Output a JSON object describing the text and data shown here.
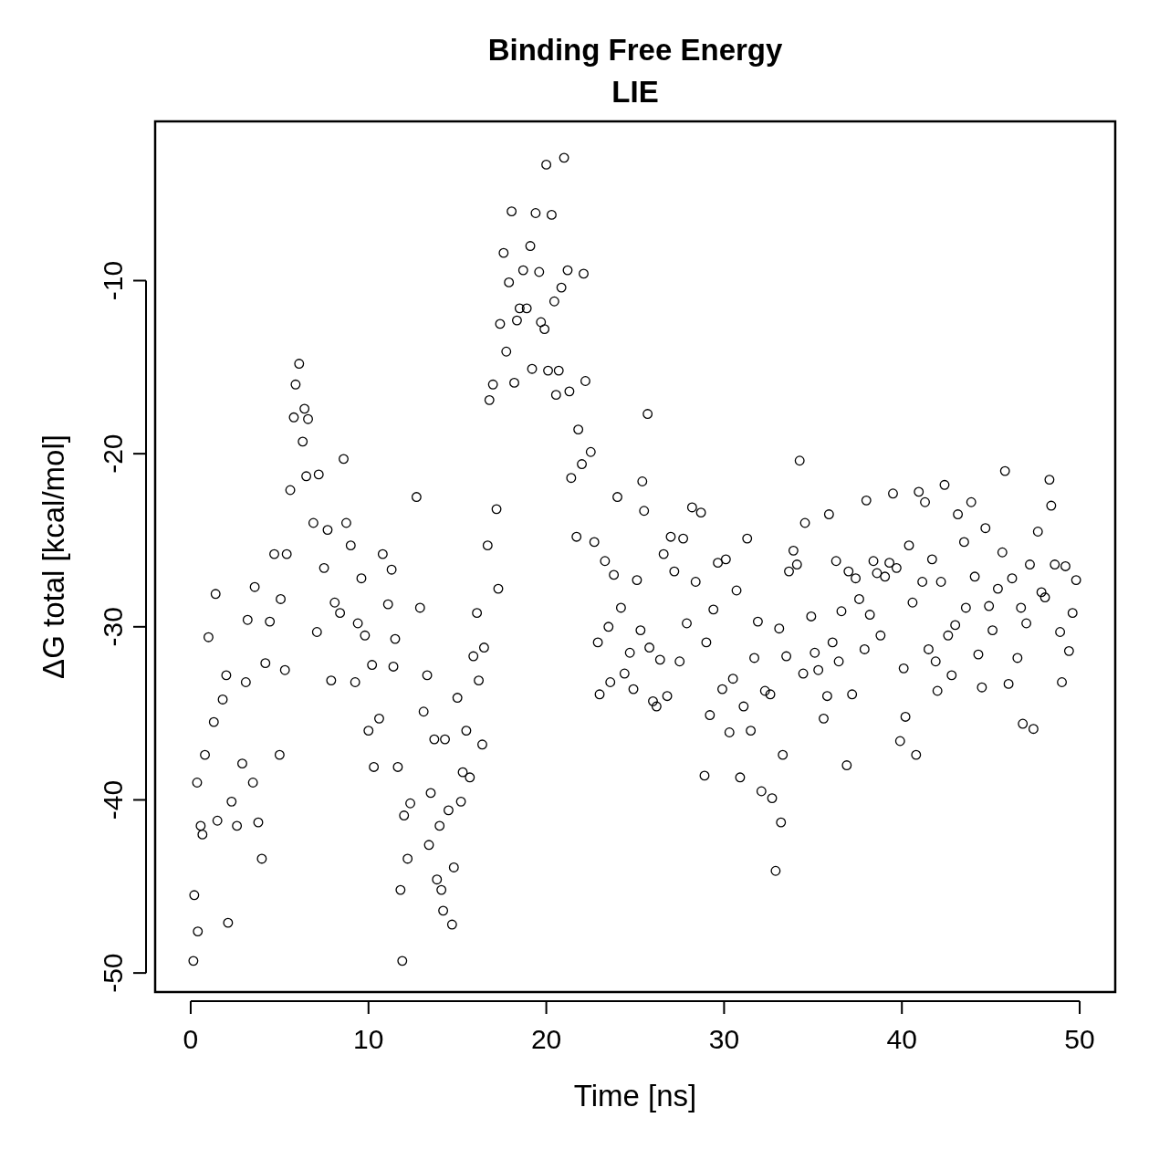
{
  "chart_data": {
    "type": "scatter",
    "title": "Binding Free Energy",
    "subtitle": "LIE",
    "xlabel": "Time [ns]",
    "ylabel": "ΔG total [kcal/mol]",
    "xlim": [
      -2,
      52
    ],
    "ylim": [
      -51.1,
      -0.8
    ],
    "xticks": [
      0,
      10,
      20,
      30,
      40,
      50
    ],
    "yticks": [
      -50,
      -40,
      -30,
      -20,
      -10
    ],
    "marker": "circle",
    "grid": false,
    "series": [
      {
        "color": "#000000",
        "x": [
          0.15,
          0.2,
          0.36,
          0.4,
          0.56,
          0.66,
          0.8,
          1.0,
          1.3,
          1.4,
          1.5,
          1.8,
          2.0,
          2.1,
          2.3,
          2.6,
          2.9,
          3.1,
          3.2,
          3.5,
          3.6,
          3.8,
          4.0,
          4.2,
          4.45,
          4.7,
          5.06,
          5.0,
          5.3,
          5.4,
          5.6,
          5.8,
          5.9,
          6.1,
          6.3,
          6.4,
          6.6,
          6.5,
          6.9,
          7.1,
          7.2,
          7.5,
          7.7,
          7.9,
          8.1,
          8.4,
          8.6,
          8.75,
          9.0,
          9.25,
          9.4,
          9.6,
          9.8,
          10.0,
          10.2,
          10.3,
          10.6,
          10.8,
          11.1,
          11.3,
          11.4,
          11.5,
          11.65,
          11.8,
          11.9,
          12.0,
          12.2,
          12.35,
          12.7,
          12.9,
          13.1,
          13.3,
          13.4,
          13.5,
          13.7,
          13.85,
          14.0,
          14.1,
          14.2,
          14.3,
          14.5,
          14.7,
          14.8,
          15.0,
          15.2,
          15.3,
          15.5,
          15.7,
          15.9,
          16.1,
          16.2,
          16.4,
          16.5,
          16.7,
          16.8,
          17.0,
          17.2,
          17.3,
          17.4,
          17.6,
          17.75,
          17.9,
          18.05,
          18.2,
          18.35,
          18.5,
          18.7,
          18.9,
          19.1,
          19.2,
          19.4,
          19.6,
          19.7,
          19.9,
          20.0,
          20.1,
          20.3,
          20.45,
          20.55,
          20.7,
          20.85,
          21.0,
          21.2,
          21.3,
          21.4,
          21.7,
          21.8,
          22.0,
          22.1,
          22.2,
          22.5,
          22.7,
          22.9,
          23.0,
          23.3,
          23.5,
          23.6,
          23.8,
          24.0,
          24.2,
          24.4,
          24.7,
          24.9,
          25.1,
          25.3,
          25.4,
          25.5,
          25.7,
          25.8,
          26.0,
          26.2,
          26.4,
          26.6,
          26.8,
          27.0,
          27.2,
          27.5,
          27.7,
          27.9,
          28.2,
          28.4,
          28.7,
          28.9,
          29.0,
          29.2,
          29.4,
          29.65,
          29.9,
          30.1,
          30.3,
          30.5,
          30.7,
          30.9,
          31.1,
          31.3,
          31.5,
          31.7,
          31.9,
          32.1,
          32.3,
          32.6,
          32.7,
          32.9,
          33.1,
          33.2,
          33.3,
          33.5,
          33.65,
          33.9,
          34.1,
          34.25,
          34.45,
          34.55,
          34.9,
          35.1,
          35.3,
          35.6,
          35.8,
          35.9,
          36.1,
          36.3,
          36.45,
          36.6,
          36.9,
          37.0,
          37.2,
          37.4,
          37.6,
          37.9,
          38.0,
          38.2,
          38.4,
          38.6,
          38.8,
          39.05,
          39.3,
          39.5,
          39.7,
          39.9,
          40.1,
          40.2,
          40.4,
          40.6,
          40.8,
          40.95,
          41.15,
          41.3,
          41.5,
          41.7,
          41.9,
          42.0,
          42.2,
          42.4,
          42.6,
          42.8,
          43.0,
          43.15,
          43.5,
          43.6,
          43.9,
          44.1,
          44.3,
          44.5,
          44.7,
          44.9,
          45.1,
          45.4,
          45.65,
          45.8,
          46.0,
          46.2,
          46.5,
          46.7,
          46.8,
          47.0,
          47.2,
          47.4,
          47.65,
          47.85,
          48.05,
          48.3,
          48.4,
          48.6,
          48.9,
          49.0,
          49.2,
          49.4,
          49.6,
          49.8
        ],
        "values": [
          -49.3,
          -45.5,
          -39.0,
          -47.6,
          -41.5,
          -42.0,
          -37.4,
          -30.6,
          -35.5,
          -28.1,
          -41.2,
          -34.2,
          -32.8,
          -47.1,
          -40.1,
          -41.5,
          -37.9,
          -33.2,
          -29.6,
          -39.0,
          -27.7,
          -41.3,
          -43.4,
          -32.1,
          -29.7,
          -25.8,
          -28.4,
          -37.4,
          -32.5,
          -25.8,
          -22.1,
          -17.9,
          -16.0,
          -14.8,
          -19.3,
          -17.4,
          -18.0,
          -21.3,
          -24.0,
          -30.3,
          -21.2,
          -26.6,
          -24.4,
          -33.1,
          -28.6,
          -29.2,
          -20.3,
          -24.0,
          -25.3,
          -33.2,
          -29.8,
          -27.2,
          -30.5,
          -36.0,
          -32.2,
          -38.1,
          -35.3,
          -25.8,
          -28.7,
          -26.7,
          -32.3,
          -30.7,
          -38.1,
          -45.2,
          -49.3,
          -40.9,
          -43.4,
          -40.2,
          -22.5,
          -28.9,
          -34.9,
          -32.8,
          -42.6,
          -39.6,
          -36.5,
          -44.6,
          -41.5,
          -45.2,
          -46.4,
          -36.5,
          -40.6,
          -47.2,
          -43.9,
          -34.1,
          -40.1,
          -38.4,
          -36.0,
          -38.7,
          -31.7,
          -29.2,
          -33.1,
          -36.8,
          -31.2,
          -25.3,
          -16.9,
          -16.0,
          -23.2,
          -27.8,
          -12.5,
          -8.4,
          -14.1,
          -10.1,
          -6.0,
          -15.9,
          -12.3,
          -11.6,
          -9.4,
          -11.6,
          -8.0,
          -15.1,
          -6.1,
          -9.5,
          -12.4,
          -12.8,
          -3.3,
          -15.2,
          -6.2,
          -11.2,
          -16.6,
          -15.2,
          -10.4,
          -2.9,
          -9.4,
          -16.4,
          -21.4,
          -24.8,
          -18.6,
          -20.6,
          -9.6,
          -15.8,
          -19.9,
          -25.1,
          -30.9,
          -33.9,
          -26.2,
          -30.0,
          -33.2,
          -27.0,
          -22.5,
          -28.9,
          -32.7,
          -31.5,
          -33.6,
          -27.3,
          -30.2,
          -21.6,
          -23.3,
          -17.7,
          -31.2,
          -34.3,
          -34.6,
          -31.9,
          -25.8,
          -34.0,
          -24.8,
          -26.8,
          -32.0,
          -24.9,
          -29.8,
          -23.1,
          -27.4,
          -23.4,
          -38.6,
          -30.9,
          -35.1,
          -29.0,
          -26.3,
          -33.6,
          -26.1,
          -36.1,
          -33.0,
          -27.9,
          -38.7,
          -34.6,
          -24.9,
          -36.0,
          -31.8,
          -29.7,
          -39.5,
          -33.7,
          -33.9,
          -39.9,
          -44.1,
          -30.1,
          -41.3,
          -37.4,
          -31.7,
          -26.8,
          -25.6,
          -26.4,
          -20.4,
          -32.7,
          -24.0,
          -29.4,
          -31.5,
          -32.5,
          -35.3,
          -34.0,
          -23.5,
          -30.9,
          -26.2,
          -32.0,
          -29.1,
          -38.0,
          -26.8,
          -33.9,
          -27.2,
          -28.4,
          -31.3,
          -22.7,
          -29.3,
          -26.2,
          -26.9,
          -30.5,
          -27.1,
          -26.3,
          -22.3,
          -26.6,
          -36.6,
          -32.4,
          -35.2,
          -25.3,
          -28.6,
          -37.4,
          -22.2,
          -27.4,
          -22.8,
          -31.3,
          -26.1,
          -32.0,
          -33.7,
          -27.4,
          -21.8,
          -30.5,
          -32.8,
          -29.9,
          -23.5,
          -25.1,
          -28.9,
          -22.8,
          -27.1,
          -31.6,
          -33.5,
          -24.3,
          -28.8,
          -30.2,
          -27.8,
          -25.7,
          -21.0,
          -33.3,
          -27.2,
          -31.8,
          -28.9,
          -35.6,
          -29.8,
          -26.4,
          -35.9,
          -24.5,
          -28.0,
          -28.3,
          -21.5,
          -23.0,
          -26.4,
          -30.3,
          -33.2,
          -26.5,
          -31.4,
          -29.2,
          -27.3
        ]
      }
    ]
  }
}
